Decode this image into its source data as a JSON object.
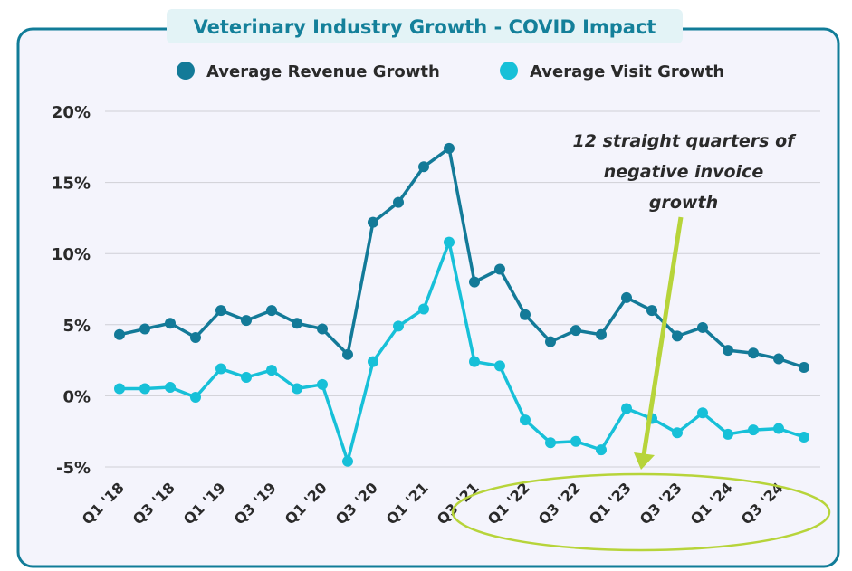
{
  "colors": {
    "frame": "#117c98",
    "panel": "#f4f4fc",
    "title_bg": "#e3f3f6",
    "title_text": "#14809a",
    "revenue": "#137a98",
    "visit": "#17c0d8",
    "annotation": "#b7d43a",
    "text": "#2a2a2a",
    "grid": "#cfcfd6"
  },
  "chart_data": {
    "type": "line",
    "title": "Veterinary Industry Growth - COVID Impact",
    "legend_position": "top",
    "grid": true,
    "ylim": [
      -5,
      20
    ],
    "y_ticks": [
      20,
      15,
      10,
      5,
      0,
      -5
    ],
    "y_tick_labels": [
      "20%",
      "15%",
      "10%",
      "5%",
      "0%",
      "-5%"
    ],
    "x": [
      "Q1 '18",
      "Q2 '18",
      "Q3 '18",
      "Q4 '18",
      "Q1 '19",
      "Q2 '19",
      "Q3 '19",
      "Q4 '19",
      "Q1 '20",
      "Q2 '20",
      "Q3 '20",
      "Q4 '20",
      "Q1 '21",
      "Q2 '21",
      "Q3 '21",
      "Q4 '21",
      "Q1 '22",
      "Q2 '22",
      "Q3 '22",
      "Q4 '22",
      "Q1 '23",
      "Q2 '23",
      "Q3 '23",
      "Q4 '23",
      "Q1 '24",
      "Q2 '24",
      "Q3 '24",
      "Q4 '24"
    ],
    "x_tick_labels": [
      "Q1 '18",
      "Q3 '18",
      "Q1 '19",
      "Q3 '19",
      "Q1 '20",
      "Q3 '20",
      "Q1 '21",
      "Q3 '21",
      "Q1 '22",
      "Q3 '22",
      "Q1 '23",
      "Q3 '23",
      "Q1 '24",
      "Q3 '24"
    ],
    "series": [
      {
        "name": "Average Revenue Growth",
        "values": [
          4.3,
          4.7,
          5.1,
          4.1,
          6.0,
          5.3,
          6.0,
          5.1,
          4.7,
          2.9,
          12.2,
          13.6,
          16.1,
          17.4,
          8.0,
          8.9,
          5.7,
          3.8,
          4.6,
          4.3,
          6.9,
          6.0,
          4.2,
          4.8,
          3.2,
          3.0,
          2.6,
          2.0
        ]
      },
      {
        "name": "Average Visit Growth",
        "values": [
          0.5,
          0.5,
          0.6,
          -0.1,
          1.9,
          1.3,
          1.8,
          0.5,
          0.8,
          -4.6,
          2.4,
          4.9,
          6.1,
          10.8,
          2.4,
          2.1,
          -1.7,
          -3.3,
          -3.2,
          -3.8,
          -0.9,
          -1.6,
          -2.6,
          -1.2,
          -2.7,
          -2.4,
          -2.3,
          -2.9
        ]
      }
    ],
    "annotation": {
      "lines": [
        "12 straight quarters of",
        "negative invoice",
        "growth"
      ]
    }
  }
}
